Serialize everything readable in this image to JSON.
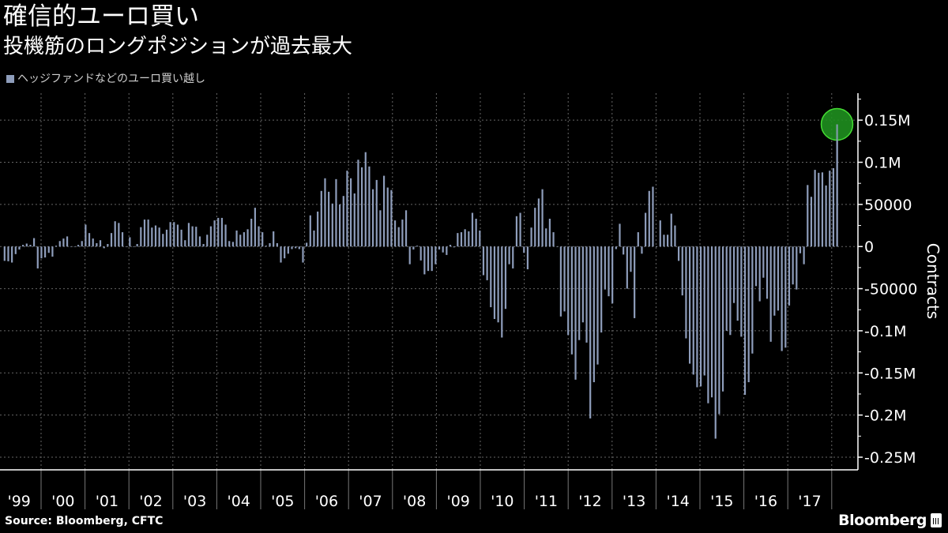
{
  "header": {
    "title": "確信的ユーロ買い",
    "subtitle": "投機筋のロングポジションが過去最大"
  },
  "footer": {
    "source": "Source: Bloomberg, CFTC",
    "logo": "Bloomberg"
  },
  "colors": {
    "background": "#000000",
    "bar": "#8e9dbb",
    "highlight_fill": "#1f8f1f",
    "highlight_stroke": "#44dd33",
    "grid": "#666666"
  },
  "chart_data": {
    "type": "bar",
    "legend": {
      "position": "top-left",
      "label": "ヘッジファンドなどのユーロ買い越し"
    },
    "ylabel": "Contracts",
    "y_axis_side": "right",
    "ylim": [
      -265000,
      182000
    ],
    "yticks": [
      150000,
      100000,
      50000,
      0,
      -50000,
      -100000,
      -150000,
      -200000,
      -250000
    ],
    "ytick_labels": [
      "0.15M",
      "0.1M",
      "50000",
      "0",
      "-50000",
      "-0.1M",
      "-0.15M",
      "-0.2M",
      "-0.25M"
    ],
    "xtick_labels": [
      "'99",
      "'00",
      "'01",
      "'02",
      "'03",
      "'04",
      "'05",
      "'06",
      "'07",
      "'08",
      "'09",
      "'10",
      "'11",
      "'12",
      "'13",
      "'14",
      "'15",
      "'16",
      "'17"
    ],
    "grid": true,
    "highlight": "last value (circled in green)",
    "series": [
      {
        "values": [
          -17000,
          -17500,
          -19000,
          -9000,
          -3500,
          2000,
          3500,
          2000,
          10000,
          -26000,
          -14000,
          -13000,
          -7500,
          -12000,
          1000,
          6500,
          9500,
          12000,
          0,
          0,
          2000,
          6500,
          26000,
          16000,
          9500,
          4000,
          7500,
          -2000,
          3000,
          16000,
          30000,
          28000,
          17000,
          0,
          11000,
          0,
          3000,
          23000,
          32000,
          32000,
          22500,
          25000,
          22500,
          15000,
          20000,
          29000,
          29000,
          26000,
          20000,
          7500,
          28000,
          24000,
          23500,
          12000,
          3000,
          14000,
          24000,
          31000,
          34000,
          34000,
          26000,
          6500,
          5500,
          19000,
          14000,
          17000,
          20500,
          33000,
          46000,
          24000,
          17000,
          1000,
          4000,
          18000,
          4000,
          -19000,
          -14000,
          -8500,
          -3000,
          -2000,
          -3000,
          -19000,
          4500,
          37000,
          19000,
          41500,
          66000,
          81000,
          65000,
          51000,
          80000,
          50000,
          60000,
          90000,
          81000,
          63000,
          103000,
          94000,
          112000,
          95000,
          68000,
          79000,
          43000,
          84000,
          70000,
          67000,
          31000,
          23000,
          32000,
          43000,
          -21000,
          -3500,
          1000,
          -16500,
          -33000,
          -29000,
          -29000,
          -21000,
          -3500,
          -7000,
          -10000,
          2000,
          -1000,
          16000,
          17000,
          20500,
          18000,
          40000,
          33000,
          19000,
          -34000,
          -40000,
          -72000,
          -86000,
          -90000,
          -108000,
          -74000,
          -21000,
          -26000,
          36000,
          40000,
          -7500,
          -27000,
          22500,
          46000,
          57000,
          68000,
          21500,
          33000,
          17000,
          0,
          -83000,
          -77000,
          -105000,
          -128000,
          -158000,
          -111000,
          -90000,
          -114000,
          -204000,
          -161000,
          -140000,
          -102000,
          -51000,
          -59000,
          -67500,
          -3000,
          27000,
          -9500,
          -50000,
          -30000,
          -85000,
          17000,
          -8500,
          40000,
          66000,
          71000,
          0,
          31000,
          14000,
          14000,
          39000,
          25000,
          -17000,
          -58000,
          -109000,
          -139000,
          -152000,
          -167000,
          -166000,
          -153000,
          -186000,
          -179000,
          -228000,
          -199000,
          -172000,
          -100000,
          -105000,
          -67000,
          -88000,
          -107000,
          -176000,
          -161000,
          -127000,
          -47000,
          -65000,
          -37000,
          -62000,
          -113000,
          -82000,
          -76000,
          -124000,
          -120000,
          -70000,
          -45000,
          -51000,
          -8000,
          -21000,
          73000,
          59000,
          91000,
          87500,
          88000,
          72500,
          90000,
          93000,
          145000
        ]
      }
    ]
  }
}
